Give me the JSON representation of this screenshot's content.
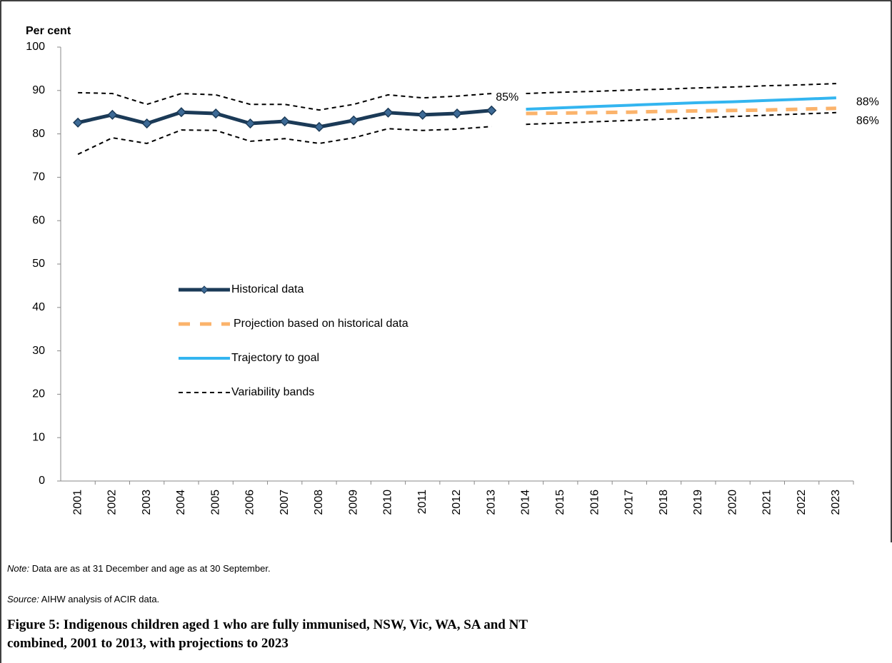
{
  "chart_data": {
    "type": "line",
    "y_label": "Per cent",
    "categories": [
      "2001",
      "2002",
      "2003",
      "2004",
      "2005",
      "2006",
      "2007",
      "2008",
      "2009",
      "2010",
      "2011",
      "2012",
      "2013",
      "2014",
      "2015",
      "2016",
      "2017",
      "2018",
      "2019",
      "2020",
      "2021",
      "2022",
      "2023"
    ],
    "ylim": [
      0,
      100
    ],
    "yticks": [
      0,
      10,
      20,
      30,
      40,
      50,
      60,
      70,
      80,
      90,
      100
    ],
    "series": [
      {
        "name": "Historical data",
        "color": "#1b3a57",
        "style": "solid-markers",
        "values": [
          82.6,
          84.4,
          82.4,
          85.0,
          84.7,
          82.4,
          82.9,
          81.6,
          83.1,
          84.9,
          84.4,
          84.7,
          85.4,
          null,
          null,
          null,
          null,
          null,
          null,
          null,
          null,
          null,
          null
        ],
        "value_labels": [
          null,
          null,
          null,
          null,
          null,
          null,
          null,
          null,
          null,
          null,
          null,
          null,
          "85%",
          null,
          null,
          null,
          null,
          null,
          null,
          null,
          null,
          null,
          null
        ]
      },
      {
        "name": "Projection based on historical data",
        "color": "#fbb36b",
        "style": "dashed",
        "values": [
          null,
          null,
          null,
          null,
          null,
          null,
          null,
          null,
          null,
          null,
          null,
          null,
          null,
          84.7,
          84.8,
          84.9,
          85.0,
          85.2,
          85.3,
          85.4,
          85.5,
          85.7,
          85.9
        ],
        "value_labels": [
          null,
          null,
          null,
          null,
          null,
          null,
          null,
          null,
          null,
          null,
          null,
          null,
          null,
          null,
          null,
          null,
          null,
          null,
          null,
          null,
          null,
          null,
          "86%"
        ]
      },
      {
        "name": "Trajectory to goal",
        "color": "#33b5f0",
        "style": "solid",
        "values": [
          null,
          null,
          null,
          null,
          null,
          null,
          null,
          null,
          null,
          null,
          null,
          null,
          null,
          85.7,
          86.0,
          86.3,
          86.6,
          86.9,
          87.2,
          87.4,
          87.7,
          88.0,
          88.3
        ],
        "value_labels": [
          null,
          null,
          null,
          null,
          null,
          null,
          null,
          null,
          null,
          null,
          null,
          null,
          null,
          null,
          null,
          null,
          null,
          null,
          null,
          null,
          null,
          null,
          "88%"
        ]
      },
      {
        "name": "Variability bands",
        "color": "#000000",
        "style": "band",
        "upper": [
          89.5,
          89.3,
          86.8,
          89.3,
          89.0,
          86.8,
          86.8,
          85.5,
          86.8,
          89.0,
          88.3,
          88.7,
          89.3,
          89.3,
          89.6,
          89.8,
          90.1,
          90.3,
          90.6,
          90.8,
          91.1,
          91.3,
          91.6
        ],
        "lower": [
          75.3,
          79.1,
          77.8,
          80.9,
          80.8,
          78.3,
          78.9,
          77.8,
          79.1,
          81.2,
          80.8,
          81.1,
          81.7,
          82.2,
          82.5,
          82.8,
          83.1,
          83.4,
          83.7,
          84.0,
          84.3,
          84.6,
          84.9
        ]
      }
    ]
  },
  "note_label": "Note:",
  "note_text": " Data are as at 31 December and age as at 30 September.",
  "source_label": "Source:",
  "source_text": " AIHW analysis of ACIR data.",
  "caption_line1": "Figure 5: Indigenous children aged 1 who are fully immunised, NSW, Vic, WA, SA and NT",
  "caption_line2": "combined, 2001 to 2013, with projections to 2023"
}
